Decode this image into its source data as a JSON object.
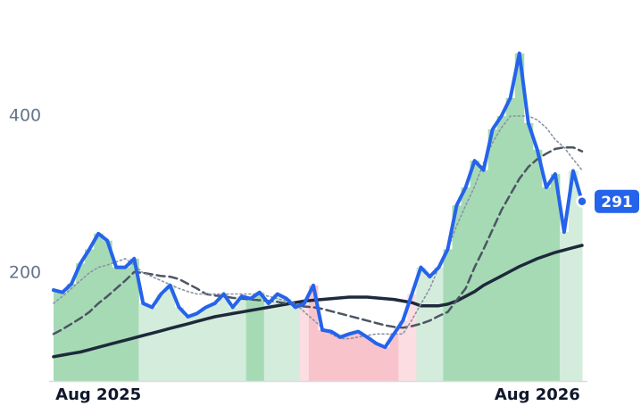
{
  "chart_data": {
    "type": "line",
    "categories": [
      null,
      null,
      null,
      null,
      null,
      "Aug 2025",
      null,
      null,
      null,
      null,
      null,
      null,
      null,
      null,
      null,
      null,
      null,
      null,
      null,
      null,
      null,
      null,
      null,
      null,
      null,
      null,
      null,
      null,
      null,
      null,
      null,
      null,
      null,
      null,
      null,
      null,
      null,
      null,
      null,
      null,
      null,
      null,
      null,
      null,
      null,
      null,
      null,
      null,
      null,
      null,
      null,
      null,
      null,
      null,
      "Aug 2026",
      null,
      null,
      null,
      null,
      null
    ],
    "series": [
      {
        "color": "#2563eb",
        "dash": "solid",
        "values": [
          178,
          175,
          186,
          212,
          230,
          250,
          241,
          207,
          207,
          218,
          161,
          156,
          173,
          184,
          156,
          144,
          148,
          156,
          161,
          173,
          156,
          170,
          167,
          175,
          161,
          173,
          167,
          156,
          161,
          184,
          127,
          125,
          118,
          122,
          125,
          118,
          110,
          105,
          122,
          139,
          173,
          207,
          195,
          207,
          230,
          286,
          309,
          343,
          331,
          383,
          400,
          423,
          480,
          391,
          357,
          309,
          326,
          252,
          330,
          291
        ]
      },
      {
        "color": "#8a93a3",
        "dash": "dotted",
        "values": [
          161,
          170,
          180,
          190,
          200,
          207,
          210,
          214,
          218,
          210,
          200,
          195,
          190,
          185,
          180,
          176,
          173,
          173,
          173,
          173,
          173,
          173,
          173,
          173,
          170,
          167,
          164,
          161,
          150,
          140,
          130,
          122,
          116,
          116,
          118,
          120,
          122,
          122,
          122,
          122,
          140,
          160,
          180,
          207,
          230,
          260,
          286,
          310,
          340,
          366,
          385,
          400,
          400,
          400,
          395,
          385,
          370,
          360,
          345,
          331
        ]
      },
      {
        "color": "#4b5563",
        "dash": "dashed",
        "values": [
          122,
          128,
          135,
          142,
          150,
          161,
          170,
          180,
          190,
          201,
          200,
          198,
          196,
          195,
          192,
          186,
          180,
          173,
          171,
          170,
          168,
          167,
          166,
          165,
          164,
          163,
          161,
          159,
          157,
          156,
          154,
          151,
          148,
          145,
          142,
          139,
          136,
          133,
          131,
          130,
          132,
          135,
          139,
          145,
          150,
          165,
          180,
          207,
          230,
          255,
          280,
          300,
          320,
          335,
          345,
          352,
          358,
          360,
          360,
          355
        ]
      },
      {
        "color": "#1e293b",
        "dash": "solid",
        "values": [
          93,
          95,
          97,
          99,
          102,
          105,
          108,
          111,
          114,
          117,
          120,
          123,
          126,
          129,
          132,
          135,
          138,
          141,
          144,
          146,
          148,
          150,
          152,
          154,
          156,
          158,
          160,
          162,
          164,
          165,
          166,
          167,
          168,
          169,
          169,
          169,
          168,
          167,
          166,
          164,
          162,
          158,
          158,
          158,
          160,
          164,
          170,
          176,
          184,
          190,
          196,
          202,
          208,
          213,
          218,
          222,
          226,
          229,
          232,
          235
        ]
      }
    ],
    "bar_colors": [
      "#a6dab5",
      "#a6dab5",
      "#a6dab5",
      "#a6dab5",
      "#a6dab5",
      "#a6dab5",
      "#a6dab5",
      "#a6dab5",
      "#a6dab5",
      "#a6dab5",
      "#d3ecdc",
      "#d3ecdc",
      "#d3ecdc",
      "#d3ecdc",
      "#d3ecdc",
      "#d3ecdc",
      "#d3ecdc",
      "#d3ecdc",
      "#d3ecdc",
      "#d3ecdc",
      "#d3ecdc",
      "#d3ecdc",
      "#a6dab5",
      "#a6dab5",
      "#d3ecdc",
      "#d3ecdc",
      "#d3ecdc",
      "#d3ecdc",
      "#fbdde2",
      "#f9c3cc",
      "#f9c3cc",
      "#f9c3cc",
      "#f9c3cc",
      "#f9c3cc",
      "#f9c3cc",
      "#f9c3cc",
      "#f9c3cc",
      "#f9c3cc",
      "#f9c3cc",
      "#fbdde2",
      "#fbdde2",
      "#d3ecdc",
      "#d3ecdc",
      "#d3ecdc",
      "#a6dab5",
      "#a6dab5",
      "#a6dab5",
      "#a6dab5",
      "#a6dab5",
      "#a6dab5",
      "#a6dab5",
      "#a6dab5",
      "#a6dab5",
      "#a6dab5",
      "#a6dab5",
      "#a6dab5",
      "#a6dab5",
      "#d3ecdc",
      "#d3ecdc",
      "#d3ecdc"
    ],
    "ylim": [
      62,
      548
    ],
    "yticks": [
      200,
      400
    ],
    "grid": false
  }
}
